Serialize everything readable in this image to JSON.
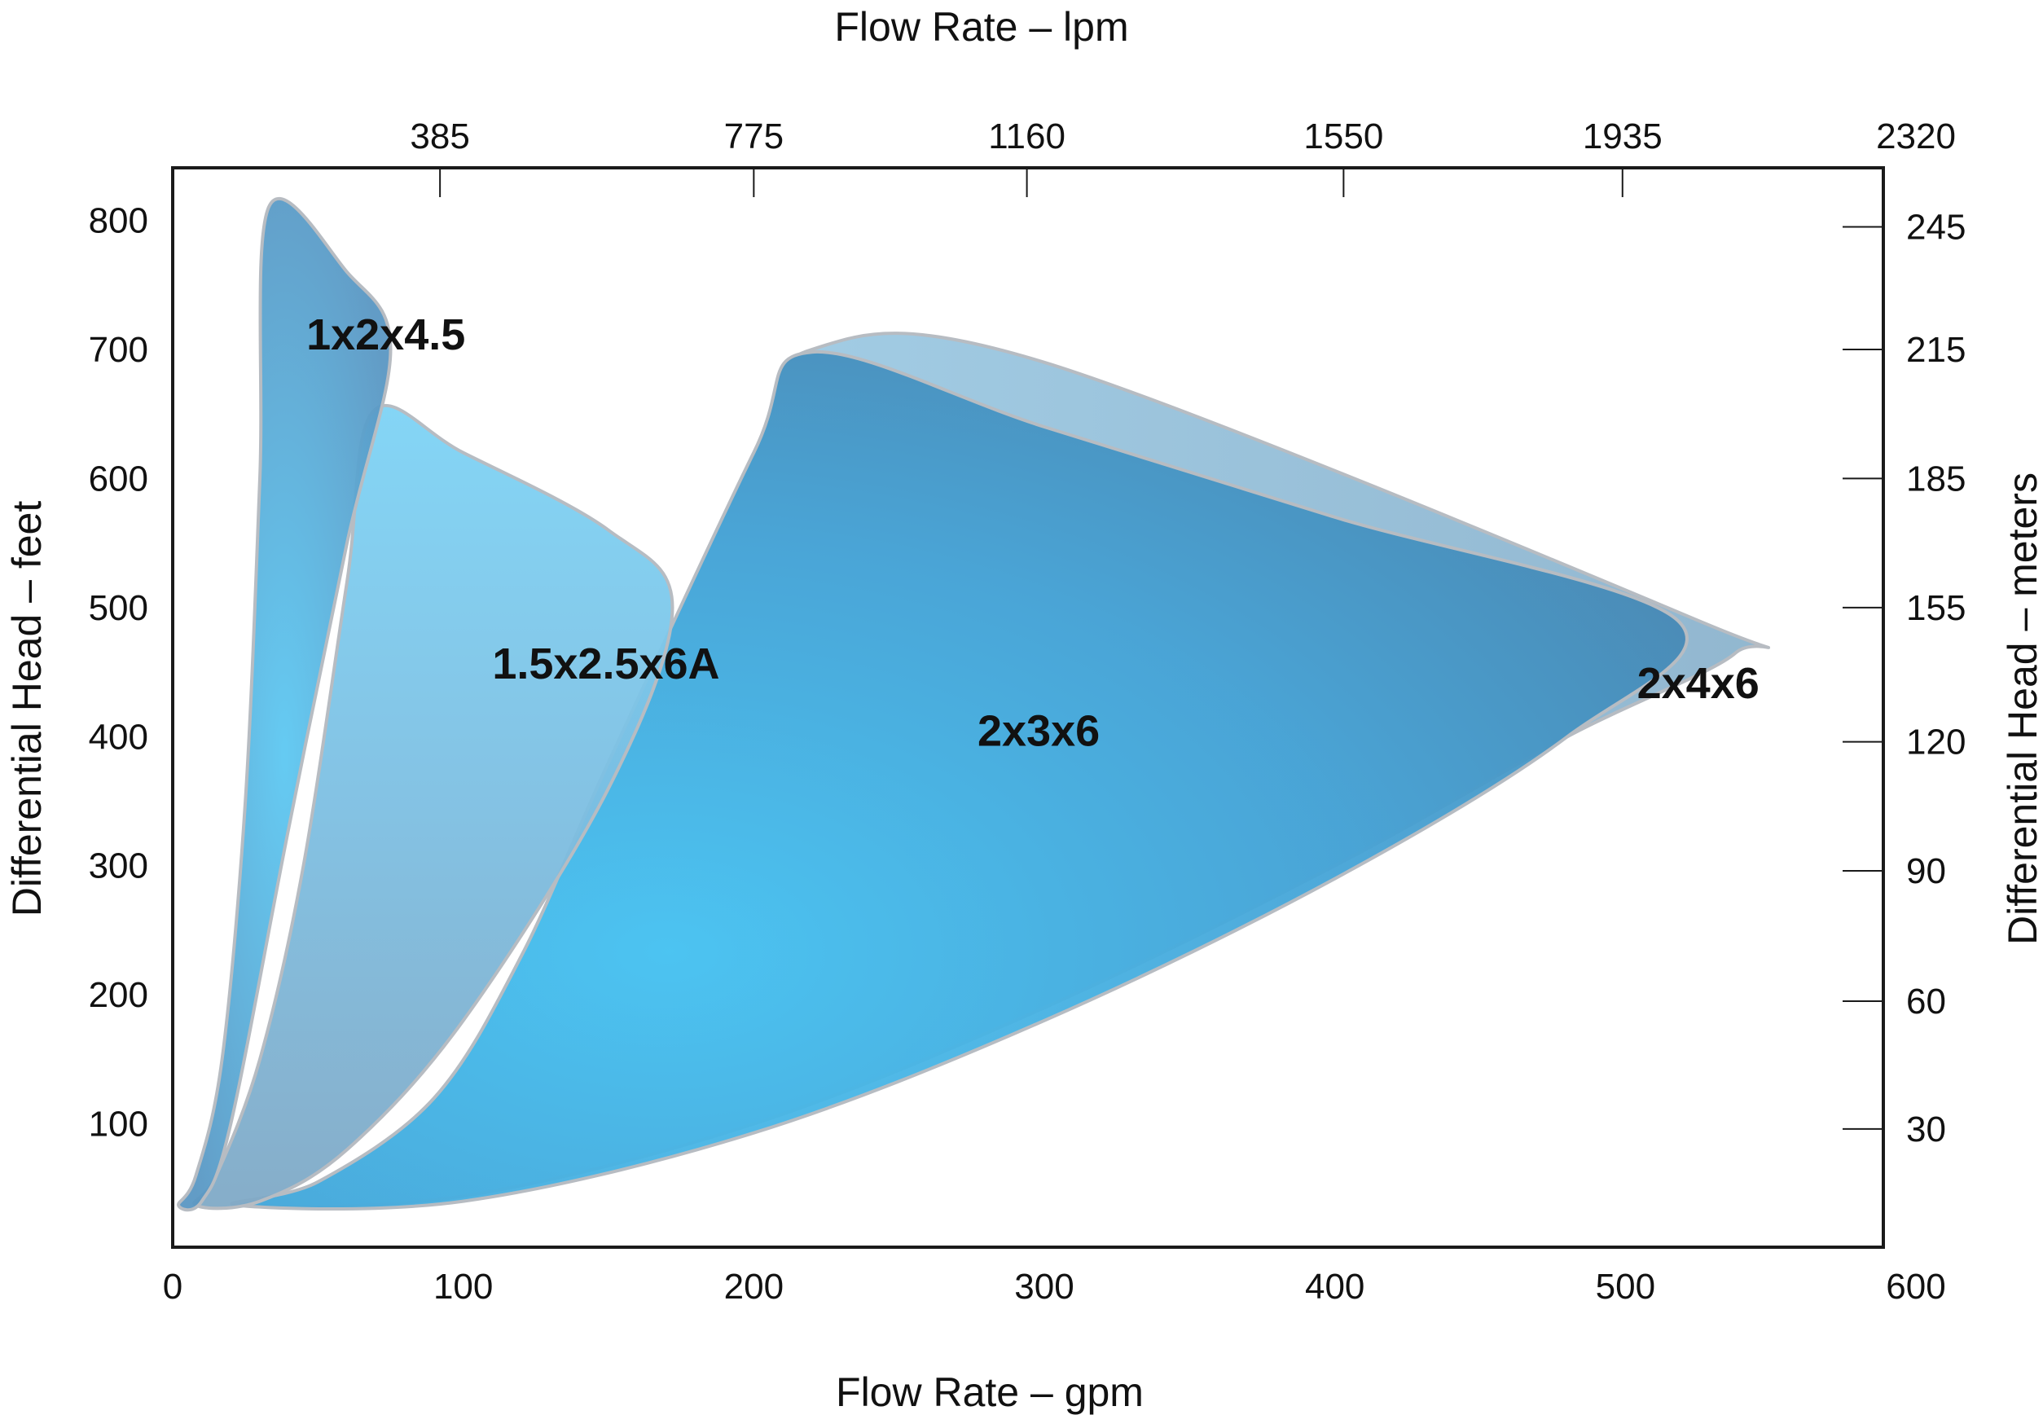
{
  "chart_data": {
    "type": "area",
    "title": "",
    "xlabel_bottom": "Flow Rate – gpm",
    "xlabel_top": "Flow Rate – lpm",
    "ylabel_left": "Differential Head – feet",
    "ylabel_right": "Differential Head – meters",
    "x_range": [
      0,
      600
    ],
    "x_ticks_bottom": [
      {
        "value": 0,
        "label": "0"
      },
      {
        "value": 100,
        "label": "100"
      },
      {
        "value": 200,
        "label": "200"
      },
      {
        "value": 300,
        "label": "300"
      },
      {
        "value": 400,
        "label": "400"
      },
      {
        "value": 500,
        "label": "500"
      },
      {
        "value": 600,
        "label": "600"
      }
    ],
    "x_ticks_top": [
      {
        "value": 92,
        "label": "385"
      },
      {
        "value": 200,
        "label": "775"
      },
      {
        "value": 294,
        "label": "1160"
      },
      {
        "value": 403,
        "label": "1550"
      },
      {
        "value": 499,
        "label": "1935"
      },
      {
        "value": 600,
        "label": "2320"
      }
    ],
    "y_range": [
      0,
      800
    ],
    "y_ticks_left": [
      {
        "value": 100,
        "label": "100"
      },
      {
        "value": 200,
        "label": "200"
      },
      {
        "value": 300,
        "label": "300"
      },
      {
        "value": 400,
        "label": "400"
      },
      {
        "value": 500,
        "label": "500"
      },
      {
        "value": 600,
        "label": "600"
      },
      {
        "value": 700,
        "label": "700"
      },
      {
        "value": 800,
        "label": "800"
      }
    ],
    "y_ticks_right": [
      {
        "value": 96,
        "label": "30"
      },
      {
        "value": 195,
        "label": "60"
      },
      {
        "value": 296,
        "label": "90"
      },
      {
        "value": 396,
        "label": "120"
      },
      {
        "value": 500,
        "label": "155"
      },
      {
        "value": 600,
        "label": "185"
      },
      {
        "value": 700,
        "label": "215"
      },
      {
        "value": 795,
        "label": "245"
      }
    ],
    "grid": false,
    "series": [
      {
        "name": "2x4x6",
        "color": "#8fb7d0",
        "label_at": [
          504,
          430
        ],
        "boundary": [
          [
            22,
            37
          ],
          [
            100,
            44
          ],
          [
            200,
            100
          ],
          [
            300,
            190
          ],
          [
            400,
            300
          ],
          [
            480,
            400
          ],
          [
            538,
            465
          ],
          [
            525,
            490
          ],
          [
            300,
            690
          ],
          [
            220,
            700
          ],
          [
            200,
            620
          ],
          [
            150,
            380
          ],
          [
            120,
            230
          ],
          [
            90,
            120
          ],
          [
            50,
            55
          ]
        ]
      },
      {
        "name": "2x3x6",
        "color": "#3fa8dc",
        "label_at": [
          277,
          393
        ],
        "boundary": [
          [
            22,
            37
          ],
          [
            100,
            40
          ],
          [
            200,
            93
          ],
          [
            300,
            180
          ],
          [
            400,
            290
          ],
          [
            480,
            400
          ],
          [
            518,
            490
          ],
          [
            400,
            570
          ],
          [
            300,
            640
          ],
          [
            220,
            698
          ],
          [
            200,
            620
          ],
          [
            150,
            380
          ],
          [
            120,
            230
          ],
          [
            90,
            120
          ],
          [
            50,
            55
          ]
        ]
      },
      {
        "name": "1.5x2.5x6A",
        "color": "#78bce0",
        "label_at": [
          110,
          445
        ],
        "boundary": [
          [
            8,
            37
          ],
          [
            30,
            40
          ],
          [
            60,
            80
          ],
          [
            100,
            180
          ],
          [
            150,
            360
          ],
          [
            172,
            500
          ],
          [
            150,
            560
          ],
          [
            100,
            620
          ],
          [
            69,
            652
          ],
          [
            60,
            520
          ],
          [
            45,
            300
          ],
          [
            30,
            150
          ],
          [
            15,
            60
          ]
        ]
      },
      {
        "name": "1x2x4.5",
        "color": "#5ba0cb",
        "label_at": [
          46,
          700
        ],
        "boundary": [
          [
            2,
            37
          ],
          [
            10,
            40
          ],
          [
            20,
            100
          ],
          [
            40,
            330
          ],
          [
            60,
            550
          ],
          [
            75,
            700
          ],
          [
            60,
            760
          ],
          [
            33,
            810
          ],
          [
            30,
            600
          ],
          [
            25,
            350
          ],
          [
            17,
            150
          ],
          [
            8,
            60
          ]
        ]
      }
    ]
  }
}
